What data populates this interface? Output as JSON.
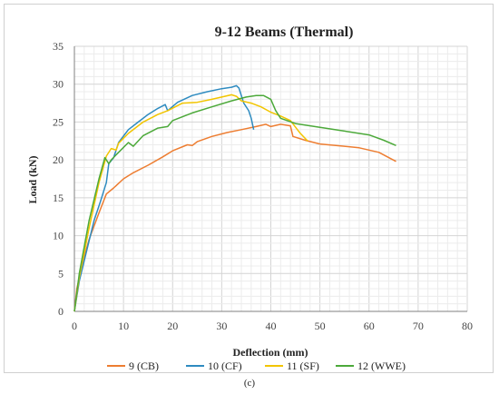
{
  "chart_data": {
    "type": "line",
    "title": "9-12 Beams (Thermal)",
    "xlabel": "Deflection (mm)",
    "ylabel": "Load (kN)",
    "xlim": [
      0,
      80
    ],
    "ylim": [
      0,
      35
    ],
    "xticks": [
      "0",
      "10",
      "20",
      "30",
      "40",
      "50",
      "60",
      "70",
      "80"
    ],
    "yticks": [
      "0",
      "5",
      "10",
      "15",
      "20",
      "25",
      "30",
      "35"
    ],
    "grid": true,
    "legend_position": "bottom",
    "series": [
      {
        "name": "9 (CB)",
        "color": "#ED7D31",
        "points": [
          [
            0,
            0
          ],
          [
            0.5,
            3
          ],
          [
            1.5,
            6
          ],
          [
            3,
            9.5
          ],
          [
            5,
            13
          ],
          [
            6.5,
            15.5
          ],
          [
            8,
            16.3
          ],
          [
            10,
            17.5
          ],
          [
            12,
            18.3
          ],
          [
            15,
            19.3
          ],
          [
            18,
            20.4
          ],
          [
            20,
            21.2
          ],
          [
            23,
            22
          ],
          [
            24,
            21.9
          ],
          [
            25,
            22.4
          ],
          [
            28,
            23.1
          ],
          [
            31,
            23.6
          ],
          [
            34,
            24
          ],
          [
            37,
            24.4
          ],
          [
            39,
            24.7
          ],
          [
            40,
            24.4
          ],
          [
            42,
            24.7
          ],
          [
            44,
            24.5
          ],
          [
            44.5,
            23.1
          ],
          [
            47,
            22.6
          ],
          [
            50,
            22.1
          ],
          [
            55,
            21.8
          ],
          [
            58,
            21.6
          ],
          [
            62,
            21
          ],
          [
            65.5,
            19.8
          ]
        ]
      },
      {
        "name": "10 (CF)",
        "color": "#2E8BC0",
        "points": [
          [
            0,
            0
          ],
          [
            1,
            4
          ],
          [
            2.5,
            8
          ],
          [
            4,
            12
          ],
          [
            5.3,
            14.5
          ],
          [
            6.5,
            17
          ],
          [
            7,
            19.5
          ],
          [
            8,
            20.3
          ],
          [
            9,
            22.3
          ],
          [
            11,
            24
          ],
          [
            13,
            25
          ],
          [
            15,
            26
          ],
          [
            17,
            26.8
          ],
          [
            18.5,
            27.3
          ],
          [
            19,
            26.5
          ],
          [
            21,
            27.6
          ],
          [
            24,
            28.5
          ],
          [
            27,
            29
          ],
          [
            30,
            29.4
          ],
          [
            32,
            29.6
          ],
          [
            33,
            29.8
          ],
          [
            33.5,
            29.5
          ],
          [
            34.5,
            27.5
          ],
          [
            35.5,
            26.5
          ],
          [
            36,
            25.5
          ],
          [
            36.5,
            24
          ]
        ]
      },
      {
        "name": "11 (SF)",
        "color": "#F2C500",
        "points": [
          [
            0,
            0
          ],
          [
            1,
            4.5
          ],
          [
            3,
            11
          ],
          [
            5,
            17
          ],
          [
            6.5,
            20.5
          ],
          [
            7.5,
            21.5
          ],
          [
            8.5,
            21.3
          ],
          [
            9,
            22.2
          ],
          [
            11,
            23.5
          ],
          [
            14,
            25
          ],
          [
            17,
            26
          ],
          [
            19,
            26.5
          ],
          [
            22,
            27.5
          ],
          [
            25,
            27.6
          ],
          [
            28,
            28
          ],
          [
            30,
            28.3
          ],
          [
            32,
            28.6
          ],
          [
            33,
            28.4
          ],
          [
            34,
            27.8
          ],
          [
            36,
            27.5
          ],
          [
            38,
            27
          ],
          [
            40,
            26.3
          ],
          [
            42,
            25.8
          ],
          [
            44,
            25.2
          ],
          [
            46,
            23.5
          ],
          [
            47.5,
            22.5
          ]
        ]
      },
      {
        "name": "12 (WWE)",
        "color": "#4CA93A",
        "points": [
          [
            0,
            0
          ],
          [
            1,
            5
          ],
          [
            3,
            12
          ],
          [
            5,
            17.5
          ],
          [
            6.2,
            20.3
          ],
          [
            7,
            19.5
          ],
          [
            7.5,
            20
          ],
          [
            9,
            21
          ],
          [
            11,
            22.3
          ],
          [
            12,
            21.8
          ],
          [
            14,
            23.2
          ],
          [
            17,
            24.2
          ],
          [
            19,
            24.4
          ],
          [
            20,
            25.2
          ],
          [
            24,
            26.2
          ],
          [
            28,
            27
          ],
          [
            32,
            27.8
          ],
          [
            35,
            28.3
          ],
          [
            37,
            28.5
          ],
          [
            38.5,
            28.5
          ],
          [
            40,
            28
          ],
          [
            41,
            26.5
          ],
          [
            42,
            25.5
          ],
          [
            45,
            24.8
          ],
          [
            50,
            24.3
          ],
          [
            55,
            23.8
          ],
          [
            60,
            23.3
          ],
          [
            63,
            22.6
          ],
          [
            65.5,
            21.9
          ]
        ]
      }
    ]
  },
  "caption": "(c)"
}
